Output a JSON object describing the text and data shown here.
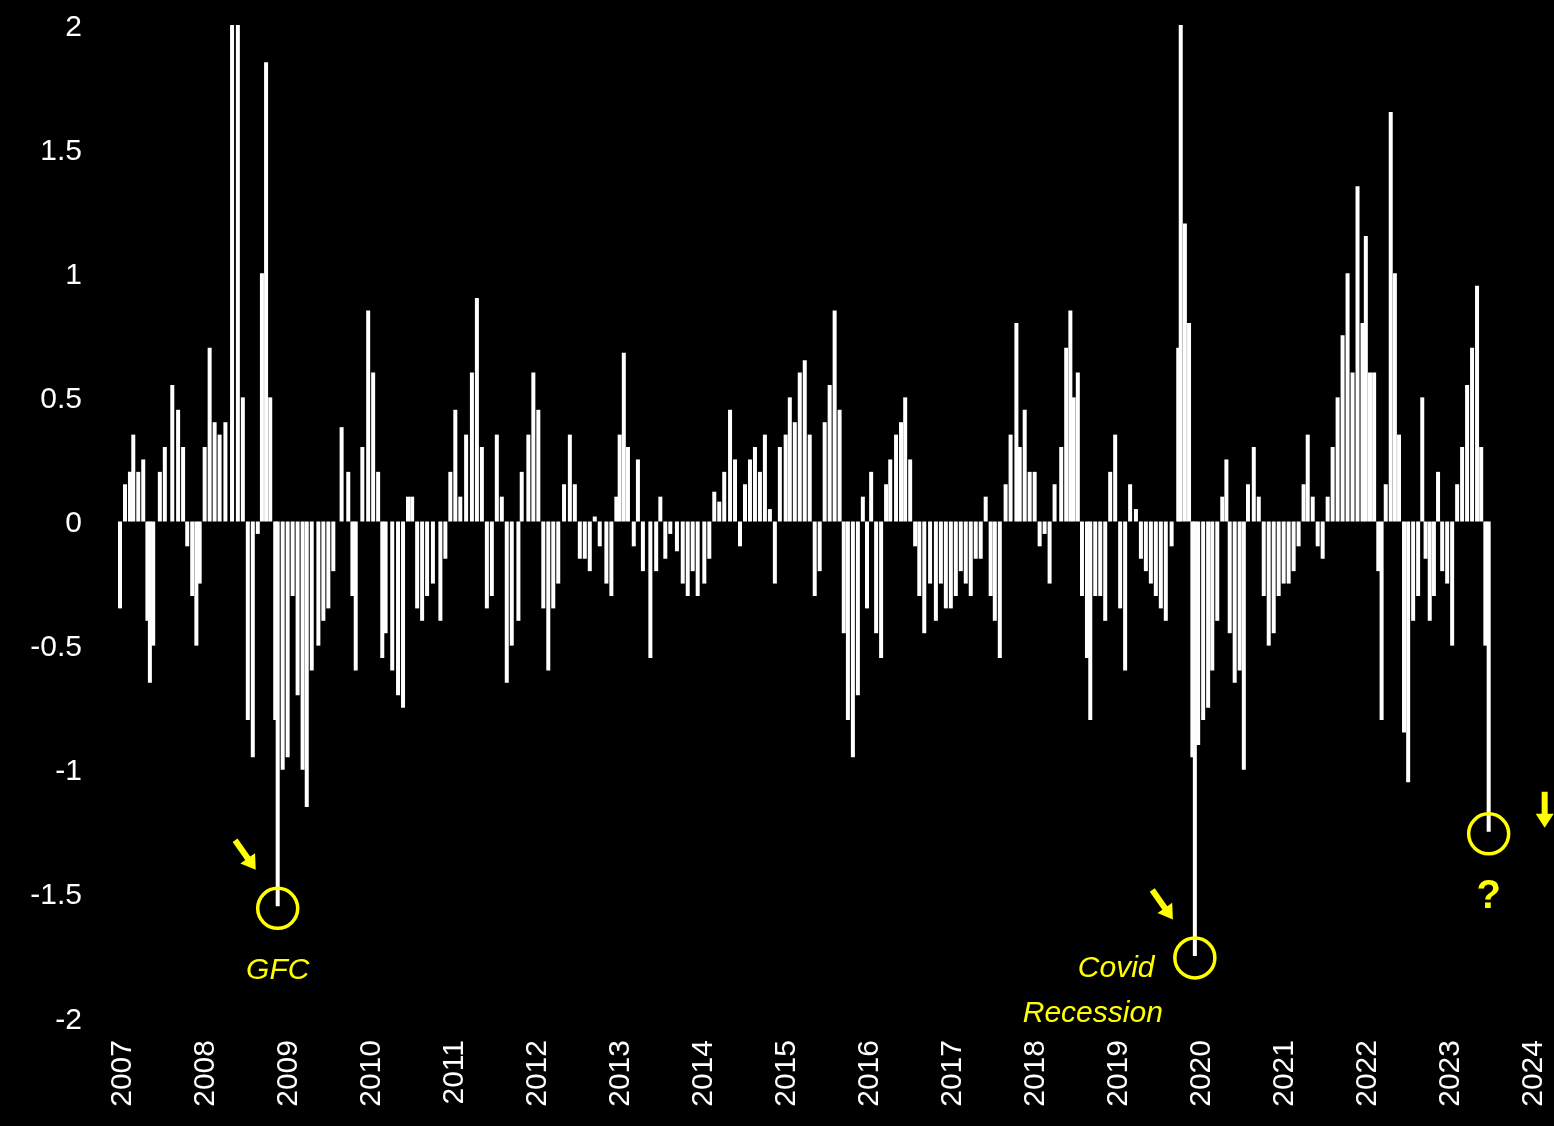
{
  "chart_data": {
    "type": "bar",
    "color": "#ffffff",
    "x": [
      2007.0,
      2007.06,
      2007.12,
      2007.16,
      2007.22,
      2007.28,
      2007.33,
      2007.36,
      2007.4,
      2007.48,
      2007.54,
      2007.63,
      2007.7,
      2007.76,
      2007.81,
      2007.87,
      2007.92,
      2007.96,
      2008.02,
      2008.08,
      2008.14,
      2008.2,
      2008.27,
      2008.35,
      2008.42,
      2008.48,
      2008.54,
      2008.6,
      2008.66,
      2008.71,
      2008.76,
      2008.81,
      2008.87,
      2008.9,
      2008.96,
      2009.02,
      2009.08,
      2009.14,
      2009.2,
      2009.25,
      2009.31,
      2009.39,
      2009.45,
      2009.51,
      2009.57,
      2009.67,
      2009.75,
      2009.8,
      2009.84,
      2009.92,
      2009.99,
      2010.05,
      2010.11,
      2010.16,
      2010.2,
      2010.28,
      2010.35,
      2010.41,
      2010.47,
      2010.52,
      2010.58,
      2010.64,
      2010.7,
      2010.77,
      2010.86,
      2010.92,
      2010.98,
      2011.04,
      2011.1,
      2011.17,
      2011.24,
      2011.3,
      2011.36,
      2011.42,
      2011.48,
      2011.54,
      2011.6,
      2011.66,
      2011.72,
      2011.8,
      2011.84,
      2011.92,
      2011.98,
      2012.04,
      2012.1,
      2012.16,
      2012.22,
      2012.28,
      2012.35,
      2012.42,
      2012.48,
      2012.54,
      2012.6,
      2012.66,
      2012.72,
      2012.78,
      2012.86,
      2012.92,
      2012.98,
      2013.02,
      2013.07,
      2013.12,
      2013.19,
      2013.24,
      2013.3,
      2013.39,
      2013.46,
      2013.51,
      2013.57,
      2013.63,
      2013.71,
      2013.78,
      2013.84,
      2013.9,
      2013.96,
      2014.04,
      2014.1,
      2014.16,
      2014.22,
      2014.28,
      2014.35,
      2014.41,
      2014.47,
      2014.53,
      2014.59,
      2014.65,
      2014.71,
      2014.77,
      2014.83,
      2014.89,
      2014.95,
      2015.02,
      2015.07,
      2015.13,
      2015.19,
      2015.25,
      2015.31,
      2015.37,
      2015.43,
      2015.49,
      2015.55,
      2015.61,
      2015.67,
      2015.72,
      2015.77,
      2015.83,
      2015.89,
      2015.95,
      2016.0,
      2016.05,
      2016.11,
      2016.17,
      2016.23,
      2016.28,
      2016.35,
      2016.41,
      2016.46,
      2016.52,
      2016.58,
      2016.63,
      2016.69,
      2016.76,
      2016.83,
      2016.89,
      2016.95,
      2017.01,
      2017.07,
      2017.13,
      2017.19,
      2017.25,
      2017.31,
      2017.37,
      2017.43,
      2017.49,
      2017.54,
      2017.6,
      2017.67,
      2017.73,
      2017.8,
      2017.84,
      2017.9,
      2017.96,
      2018.02,
      2018.08,
      2018.14,
      2018.2,
      2018.26,
      2018.34,
      2018.4,
      2018.45,
      2018.49,
      2018.54,
      2018.59,
      2018.65,
      2018.69,
      2018.75,
      2018.81,
      2018.87,
      2018.93,
      2018.99,
      2019.05,
      2019.11,
      2019.17,
      2019.24,
      2019.3,
      2019.36,
      2019.42,
      2019.48,
      2019.54,
      2019.6,
      2019.67,
      2019.75,
      2019.78,
      2019.83,
      2019.88,
      2019.92,
      2019.95,
      2019.99,
      2020.05,
      2020.11,
      2020.16,
      2020.22,
      2020.28,
      2020.33,
      2020.37,
      2020.43,
      2020.49,
      2020.54,
      2020.59,
      2020.66,
      2020.72,
      2020.78,
      2020.84,
      2020.9,
      2020.96,
      2021.02,
      2021.08,
      2021.14,
      2021.2,
      2021.26,
      2021.31,
      2021.37,
      2021.43,
      2021.49,
      2021.55,
      2021.61,
      2021.67,
      2021.73,
      2021.79,
      2021.85,
      2021.91,
      2021.97,
      2022.01,
      2022.06,
      2022.11,
      2022.16,
      2022.2,
      2022.25,
      2022.31,
      2022.36,
      2022.41,
      2022.47,
      2022.52,
      2022.58,
      2022.64,
      2022.69,
      2022.73,
      2022.78,
      2022.83,
      2022.88,
      2022.93,
      2022.99,
      2023.05,
      2023.11,
      2023.17,
      2023.23,
      2023.29,
      2023.35,
      2023.4,
      2023.45,
      2023.49
    ],
    "values": [
      -0.35,
      0.15,
      0.2,
      0.35,
      0.2,
      0.25,
      -0.4,
      -0.65,
      -0.5,
      0.2,
      0.3,
      0.55,
      0.45,
      0.3,
      -0.1,
      -0.3,
      -0.5,
      -0.25,
      0.3,
      0.7,
      0.4,
      0.35,
      0.4,
      2.0,
      2.0,
      0.5,
      -0.8,
      -0.95,
      -0.05,
      1.0,
      1.85,
      0.5,
      -0.8,
      -1.55,
      -1.0,
      -0.95,
      -0.3,
      -0.7,
      -1.0,
      -1.15,
      -0.6,
      -0.5,
      -0.4,
      -0.35,
      -0.2,
      0.38,
      0.2,
      -0.3,
      -0.6,
      0.3,
      0.85,
      0.6,
      0.2,
      -0.55,
      -0.45,
      -0.6,
      -0.7,
      -0.75,
      0.1,
      0.1,
      -0.35,
      -0.4,
      -0.3,
      -0.25,
      -0.4,
      -0.15,
      0.2,
      0.45,
      0.1,
      0.35,
      0.6,
      0.9,
      0.3,
      -0.35,
      -0.3,
      0.35,
      0.1,
      -0.65,
      -0.5,
      -0.4,
      0.2,
      0.35,
      0.6,
      0.45,
      -0.35,
      -0.6,
      -0.35,
      -0.25,
      0.15,
      0.35,
      0.15,
      -0.15,
      -0.15,
      -0.2,
      0.02,
      -0.1,
      -0.25,
      -0.3,
      0.1,
      0.35,
      0.68,
      0.3,
      -0.1,
      0.25,
      -0.2,
      -0.55,
      -0.2,
      0.1,
      -0.15,
      -0.05,
      -0.12,
      -0.25,
      -0.3,
      -0.2,
      -0.3,
      -0.25,
      -0.15,
      0.12,
      0.08,
      0.2,
      0.45,
      0.25,
      -0.1,
      0.15,
      0.25,
      0.3,
      0.2,
      0.35,
      0.05,
      -0.25,
      0.3,
      0.35,
      0.5,
      0.4,
      0.6,
      0.65,
      0.35,
      -0.3,
      -0.2,
      0.4,
      0.55,
      0.85,
      0.45,
      -0.45,
      -0.8,
      -0.95,
      -0.7,
      0.1,
      -0.35,
      0.2,
      -0.45,
      -0.55,
      0.15,
      0.25,
      0.35,
      0.4,
      0.5,
      0.25,
      -0.1,
      -0.3,
      -0.45,
      -0.25,
      -0.4,
      -0.25,
      -0.35,
      -0.35,
      -0.3,
      -0.2,
      -0.25,
      -0.3,
      -0.15,
      -0.15,
      0.1,
      -0.3,
      -0.4,
      -0.55,
      0.15,
      0.35,
      0.8,
      0.3,
      0.45,
      0.2,
      0.2,
      -0.1,
      -0.05,
      -0.25,
      0.15,
      0.3,
      0.7,
      0.85,
      0.5,
      0.6,
      -0.3,
      -0.55,
      -0.8,
      -0.3,
      -0.3,
      -0.4,
      0.2,
      0.35,
      -0.35,
      -0.6,
      0.15,
      0.05,
      -0.15,
      -0.2,
      -0.25,
      -0.3,
      -0.35,
      -0.4,
      -0.1,
      0.7,
      2.0,
      1.2,
      0.8,
      -0.95,
      -1.75,
      -0.9,
      -0.8,
      -0.75,
      -0.6,
      -0.4,
      0.1,
      0.25,
      -0.45,
      -0.65,
      -0.6,
      -1.0,
      0.15,
      0.3,
      0.1,
      -0.3,
      -0.5,
      -0.45,
      -0.3,
      -0.25,
      -0.25,
      -0.2,
      -0.1,
      0.15,
      0.35,
      0.1,
      -0.1,
      -0.15,
      0.1,
      0.3,
      0.5,
      0.75,
      1.0,
      0.6,
      1.35,
      0.8,
      1.15,
      0.6,
      0.6,
      -0.2,
      -0.8,
      0.15,
      1.65,
      1.0,
      0.35,
      -0.85,
      -1.05,
      -0.4,
      -0.3,
      0.5,
      -0.15,
      -0.4,
      -0.3,
      0.2,
      -0.2,
      -0.25,
      -0.5,
      0.15,
      0.3,
      0.55,
      0.7,
      0.95,
      0.3,
      -0.5,
      -1.25
    ],
    "xlim": [
      2007,
      2024
    ],
    "xticks": [
      2007,
      2008,
      2009,
      2010,
      2011,
      2012,
      2013,
      2014,
      2015,
      2016,
      2017,
      2018,
      2019,
      2020,
      2021,
      2022,
      2023,
      2024
    ],
    "ylim": [
      -2,
      2
    ],
    "yticks": [
      -2,
      -1.5,
      -1,
      -0.5,
      0,
      0.5,
      1,
      1.5,
      2
    ],
    "annotations": [
      {
        "text": "GFC",
        "x": 2008.9,
        "y": -1.55
      },
      {
        "text": "Covid Recession",
        "x": 2019.95,
        "y": -1.75
      },
      {
        "text": "?",
        "x": 2023.49,
        "y": -1.25
      }
    ]
  }
}
